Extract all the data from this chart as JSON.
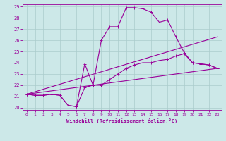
{
  "xlabel": "Windchill (Refroidissement éolien,°C)",
  "xlim": [
    -0.5,
    23.5
  ],
  "ylim": [
    19.8,
    29.2
  ],
  "xticks": [
    0,
    1,
    2,
    3,
    4,
    5,
    6,
    7,
    8,
    9,
    10,
    11,
    12,
    13,
    14,
    15,
    16,
    17,
    18,
    19,
    20,
    21,
    22,
    23
  ],
  "yticks": [
    20,
    21,
    22,
    23,
    24,
    25,
    26,
    27,
    28,
    29
  ],
  "bg_color": "#cce8e8",
  "line_color": "#990099",
  "grid_color": "#aacccc",
  "series": [
    {
      "x": [
        0,
        1,
        2,
        3,
        4,
        5,
        6,
        7,
        8,
        9,
        10,
        11,
        12,
        13,
        14,
        15,
        16,
        17,
        18,
        19,
        20,
        21,
        22,
        23
      ],
      "y": [
        21.2,
        21.1,
        21.1,
        21.2,
        21.1,
        20.2,
        20.1,
        23.9,
        22.0,
        26.0,
        27.2,
        27.2,
        28.9,
        28.9,
        28.8,
        28.5,
        27.6,
        27.8,
        26.3,
        24.9,
        24.0,
        23.9,
        23.8,
        23.5
      ],
      "marker": true
    },
    {
      "x": [
        0,
        1,
        2,
        3,
        4,
        5,
        6,
        7,
        8,
        9,
        10,
        11,
        12,
        13,
        14,
        15,
        16,
        17,
        18,
        19,
        20,
        21,
        22,
        23
      ],
      "y": [
        21.2,
        21.1,
        21.1,
        21.2,
        21.1,
        20.2,
        20.1,
        21.8,
        22.0,
        22.0,
        22.5,
        23.0,
        23.5,
        23.8,
        24.0,
        24.0,
        24.2,
        24.3,
        24.6,
        24.8,
        24.0,
        23.9,
        23.8,
        23.5
      ],
      "marker": true
    },
    {
      "x": [
        0,
        23
      ],
      "y": [
        21.2,
        26.3
      ],
      "marker": false
    },
    {
      "x": [
        0,
        23
      ],
      "y": [
        21.2,
        23.5
      ],
      "marker": false
    }
  ]
}
